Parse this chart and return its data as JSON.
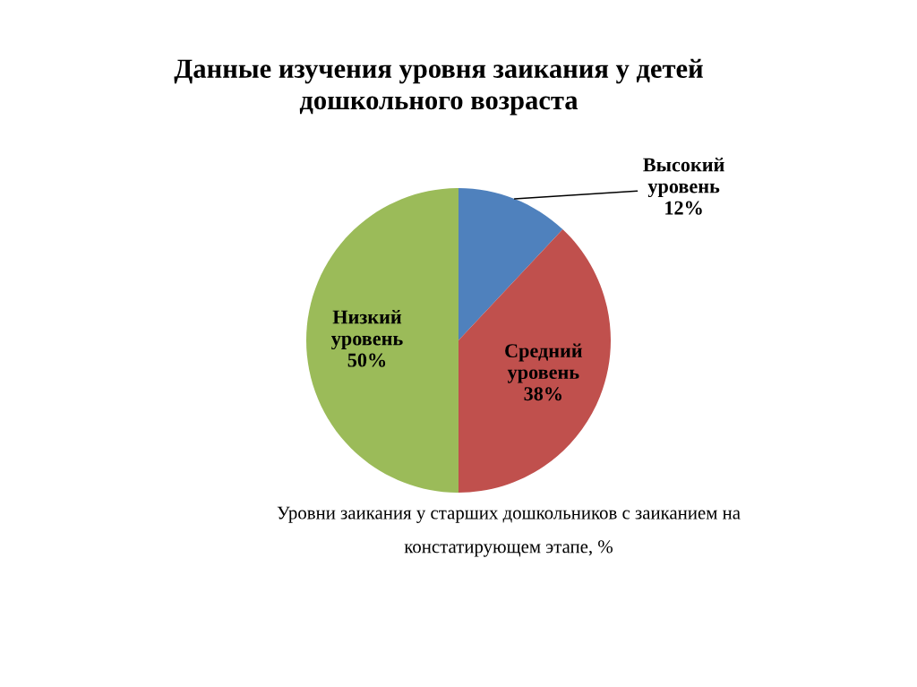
{
  "chart_data": {
    "type": "pie",
    "title": "Данные изучения уровня заикания у детей дошкольного возраста",
    "categories": [
      "Высокий уровень",
      "Средний уровень",
      "Низкий уровень"
    ],
    "values": [
      12,
      38,
      50
    ],
    "colors": [
      "#4f81bd",
      "#c0504d",
      "#9bbb59"
    ],
    "value_labels": [
      "12%",
      "38%",
      "50%"
    ],
    "annotations": [
      "Уровни заикания у старших дошкольников с заиканием на констатирующем этапе, %"
    ]
  }
}
